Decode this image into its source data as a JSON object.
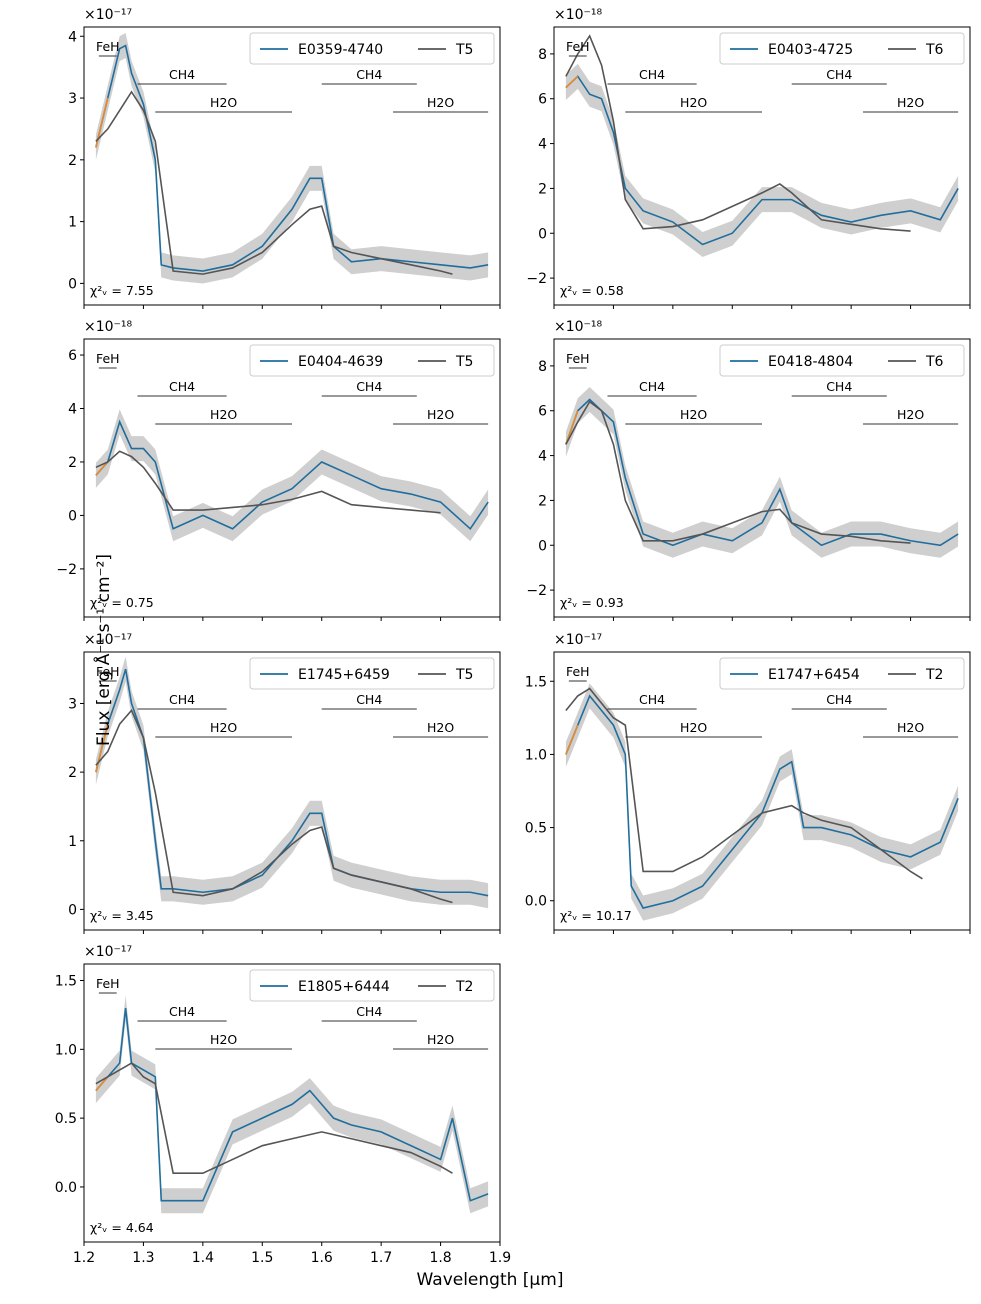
{
  "figure": {
    "ylabel": "Flux [erg Å⁻¹ s⁻¹ cm⁻²]",
    "xlabel": "Wavelength [μm]"
  },
  "colors": {
    "object": "#1f6e9e",
    "template": "#555555",
    "masked": "#e98a2a",
    "band": "#cfcfcf"
  },
  "chart_data": [
    {
      "type": "line",
      "panel": "row1-left",
      "object": "E0359-4740",
      "template": "T5",
      "exponent": "×10⁻¹⁷",
      "chi2": "7.55",
      "ylim": [
        -0.35,
        4.15
      ],
      "yticks": [
        0,
        1,
        2,
        3,
        4
      ],
      "series": [
        {
          "name": "E0359-4740",
          "x": [
            1.22,
            1.24,
            1.26,
            1.27,
            1.28,
            1.3,
            1.32,
            1.33,
            1.35,
            1.4,
            1.45,
            1.5,
            1.55,
            1.58,
            1.6,
            1.62,
            1.65,
            1.7,
            1.75,
            1.8,
            1.85,
            1.88
          ],
          "y": [
            2.2,
            3.0,
            3.8,
            3.85,
            3.4,
            2.9,
            2.0,
            0.3,
            0.25,
            0.2,
            0.3,
            0.6,
            1.2,
            1.7,
            1.7,
            0.6,
            0.35,
            0.4,
            0.35,
            0.3,
            0.25,
            0.3
          ]
        },
        {
          "name": "T5",
          "x": [
            1.22,
            1.24,
            1.26,
            1.28,
            1.3,
            1.32,
            1.35,
            1.4,
            1.45,
            1.5,
            1.55,
            1.58,
            1.6,
            1.62,
            1.65,
            1.7,
            1.75,
            1.8,
            1.82
          ],
          "y": [
            2.3,
            2.5,
            2.8,
            3.1,
            2.8,
            2.3,
            0.2,
            0.15,
            0.25,
            0.5,
            0.95,
            1.2,
            1.25,
            0.6,
            0.5,
            0.4,
            0.3,
            0.2,
            0.15
          ]
        }
      ]
    },
    {
      "type": "line",
      "panel": "row1-right",
      "object": "E0403-4725",
      "template": "T6",
      "exponent": "×10⁻¹⁸",
      "chi2": "0.58",
      "ylim": [
        -3.2,
        9.2
      ],
      "yticks": [
        -2,
        0,
        2,
        4,
        6,
        8
      ],
      "series": [
        {
          "name": "E0403-4725",
          "x": [
            1.22,
            1.24,
            1.26,
            1.28,
            1.3,
            1.32,
            1.35,
            1.4,
            1.45,
            1.5,
            1.55,
            1.6,
            1.65,
            1.7,
            1.75,
            1.8,
            1.85,
            1.88
          ],
          "y": [
            6.5,
            7.0,
            6.2,
            6.0,
            4.5,
            2.0,
            1.0,
            0.5,
            -0.5,
            0.0,
            1.5,
            1.5,
            0.8,
            0.5,
            0.8,
            1.0,
            0.6,
            2.0
          ]
        },
        {
          "name": "T6",
          "x": [
            1.22,
            1.24,
            1.26,
            1.28,
            1.3,
            1.32,
            1.35,
            1.4,
            1.45,
            1.5,
            1.55,
            1.58,
            1.6,
            1.65,
            1.7,
            1.75,
            1.8
          ],
          "y": [
            7.0,
            8.0,
            8.8,
            7.5,
            5.0,
            1.5,
            0.2,
            0.3,
            0.6,
            1.2,
            1.8,
            2.2,
            1.8,
            0.6,
            0.4,
            0.2,
            0.1
          ]
        }
      ]
    },
    {
      "type": "line",
      "panel": "row2-left",
      "object": "E0404-4639",
      "template": "T5",
      "exponent": "×10⁻¹⁸",
      "chi2": "0.75",
      "ylim": [
        -3.8,
        6.6
      ],
      "yticks": [
        -2,
        0,
        2,
        4,
        6
      ],
      "series": [
        {
          "name": "E0404-4639",
          "x": [
            1.22,
            1.24,
            1.26,
            1.28,
            1.3,
            1.32,
            1.35,
            1.4,
            1.45,
            1.5,
            1.55,
            1.6,
            1.65,
            1.7,
            1.75,
            1.8,
            1.85,
            1.88
          ],
          "y": [
            1.5,
            2.0,
            3.5,
            2.5,
            2.5,
            2.0,
            -0.5,
            0.0,
            -0.5,
            0.5,
            1.0,
            2.0,
            1.5,
            1.0,
            0.8,
            0.5,
            -0.5,
            0.5
          ]
        },
        {
          "name": "T5",
          "x": [
            1.22,
            1.24,
            1.26,
            1.28,
            1.3,
            1.32,
            1.35,
            1.4,
            1.45,
            1.5,
            1.55,
            1.6,
            1.65,
            1.7,
            1.75,
            1.8
          ],
          "y": [
            1.8,
            2.0,
            2.4,
            2.2,
            1.8,
            1.2,
            0.2,
            0.2,
            0.3,
            0.4,
            0.6,
            0.9,
            0.4,
            0.3,
            0.2,
            0.1
          ]
        }
      ]
    },
    {
      "type": "line",
      "panel": "row2-right",
      "object": "E0418-4804",
      "template": "T6",
      "exponent": "×10⁻¹⁸",
      "chi2": "0.93",
      "ylim": [
        -3.2,
        9.2
      ],
      "yticks": [
        -2,
        0,
        2,
        4,
        6,
        8
      ],
      "series": [
        {
          "name": "E0418-4804",
          "x": [
            1.22,
            1.24,
            1.26,
            1.28,
            1.3,
            1.32,
            1.35,
            1.4,
            1.45,
            1.5,
            1.55,
            1.58,
            1.6,
            1.65,
            1.7,
            1.75,
            1.8,
            1.85,
            1.88
          ],
          "y": [
            4.5,
            6.0,
            6.5,
            6.0,
            5.5,
            3.0,
            0.5,
            0.0,
            0.5,
            0.2,
            1.0,
            2.5,
            1.0,
            0.0,
            0.5,
            0.5,
            0.2,
            0.0,
            0.5
          ]
        },
        {
          "name": "T6",
          "x": [
            1.22,
            1.24,
            1.26,
            1.28,
            1.3,
            1.32,
            1.35,
            1.4,
            1.45,
            1.5,
            1.55,
            1.58,
            1.6,
            1.65,
            1.7,
            1.75,
            1.8
          ],
          "y": [
            4.5,
            5.5,
            6.4,
            6.0,
            4.5,
            2.0,
            0.2,
            0.2,
            0.5,
            1.0,
            1.5,
            1.6,
            1.0,
            0.5,
            0.4,
            0.2,
            0.1
          ]
        }
      ]
    },
    {
      "type": "line",
      "panel": "row3-left",
      "object": "E1745+6459",
      "template": "T5",
      "exponent": "×10⁻¹⁷",
      "chi2": "3.45",
      "ylim": [
        -0.3,
        3.75
      ],
      "yticks": [
        0,
        1,
        2,
        3
      ],
      "series": [
        {
          "name": "E1745+6459",
          "x": [
            1.22,
            1.24,
            1.26,
            1.27,
            1.28,
            1.3,
            1.32,
            1.33,
            1.35,
            1.4,
            1.45,
            1.5,
            1.55,
            1.58,
            1.6,
            1.62,
            1.65,
            1.7,
            1.75,
            1.8,
            1.85,
            1.88
          ],
          "y": [
            2.0,
            2.7,
            3.2,
            3.5,
            3.0,
            2.5,
            1.0,
            0.3,
            0.3,
            0.25,
            0.3,
            0.5,
            1.0,
            1.4,
            1.4,
            0.6,
            0.5,
            0.4,
            0.3,
            0.25,
            0.25,
            0.2
          ]
        },
        {
          "name": "T5",
          "x": [
            1.22,
            1.24,
            1.26,
            1.28,
            1.3,
            1.32,
            1.35,
            1.4,
            1.45,
            1.5,
            1.55,
            1.58,
            1.6,
            1.62,
            1.65,
            1.7,
            1.75,
            1.8,
            1.82
          ],
          "y": [
            2.1,
            2.3,
            2.7,
            2.9,
            2.5,
            1.7,
            0.25,
            0.2,
            0.3,
            0.55,
            0.95,
            1.15,
            1.2,
            0.6,
            0.5,
            0.4,
            0.3,
            0.15,
            0.1
          ]
        }
      ]
    },
    {
      "type": "line",
      "panel": "row3-right",
      "object": "E1747+6454",
      "template": "T2",
      "exponent": "×10⁻¹⁷",
      "chi2": "10.17",
      "ylim": [
        -0.2,
        1.7
      ],
      "yticks": [
        0.0,
        0.5,
        1.0,
        1.5
      ],
      "series": [
        {
          "name": "E1747+6454",
          "x": [
            1.22,
            1.24,
            1.26,
            1.28,
            1.3,
            1.32,
            1.33,
            1.35,
            1.4,
            1.45,
            1.5,
            1.55,
            1.58,
            1.6,
            1.62,
            1.65,
            1.7,
            1.75,
            1.8,
            1.85,
            1.88
          ],
          "y": [
            1.0,
            1.2,
            1.4,
            1.3,
            1.2,
            1.0,
            0.1,
            -0.05,
            0.0,
            0.1,
            0.35,
            0.6,
            0.9,
            0.95,
            0.5,
            0.5,
            0.45,
            0.35,
            0.3,
            0.4,
            0.7
          ]
        },
        {
          "name": "T2",
          "x": [
            1.22,
            1.24,
            1.26,
            1.28,
            1.3,
            1.32,
            1.35,
            1.4,
            1.45,
            1.5,
            1.55,
            1.6,
            1.62,
            1.65,
            1.7,
            1.75,
            1.8,
            1.82
          ],
          "y": [
            1.3,
            1.4,
            1.45,
            1.35,
            1.25,
            1.2,
            0.2,
            0.2,
            0.3,
            0.45,
            0.6,
            0.65,
            0.6,
            0.55,
            0.5,
            0.35,
            0.2,
            0.15
          ]
        }
      ]
    },
    {
      "type": "line",
      "panel": "row4-left",
      "object": "E1805+6444",
      "template": "T2",
      "exponent": "×10⁻¹⁷",
      "chi2": "4.64",
      "ylim": [
        -0.4,
        1.62
      ],
      "yticks": [
        0.0,
        0.5,
        1.0,
        1.5
      ],
      "series": [
        {
          "name": "E1805+6444",
          "x": [
            1.22,
            1.24,
            1.26,
            1.27,
            1.28,
            1.3,
            1.32,
            1.33,
            1.35,
            1.4,
            1.45,
            1.5,
            1.55,
            1.58,
            1.6,
            1.62,
            1.65,
            1.7,
            1.75,
            1.8,
            1.82,
            1.85,
            1.88
          ],
          "y": [
            0.7,
            0.8,
            0.9,
            1.3,
            0.9,
            0.85,
            0.8,
            -0.1,
            -0.1,
            -0.1,
            0.4,
            0.5,
            0.6,
            0.7,
            0.6,
            0.5,
            0.45,
            0.4,
            0.3,
            0.2,
            0.5,
            -0.1,
            -0.05
          ]
        },
        {
          "name": "T2",
          "x": [
            1.22,
            1.24,
            1.26,
            1.28,
            1.3,
            1.32,
            1.35,
            1.4,
            1.45,
            1.5,
            1.55,
            1.6,
            1.62,
            1.65,
            1.7,
            1.75,
            1.8,
            1.82
          ],
          "y": [
            0.75,
            0.8,
            0.85,
            0.9,
            0.8,
            0.75,
            0.1,
            0.1,
            0.2,
            0.3,
            0.35,
            0.4,
            0.38,
            0.35,
            0.3,
            0.25,
            0.15,
            0.1
          ]
        }
      ]
    }
  ],
  "shared": {
    "xlim": [
      1.2,
      1.9
    ],
    "xticks": [
      "1.2",
      "1.3",
      "1.4",
      "1.5",
      "1.6",
      "1.7",
      "1.8",
      "1.9"
    ],
    "bands": [
      {
        "label": "FeH",
        "x0": 1.225,
        "x1": 1.255,
        "level": 0
      },
      {
        "label": "CH4",
        "x0": 1.29,
        "x1": 1.44,
        "level": 1
      },
      {
        "label": "CH4",
        "x0": 1.6,
        "x1": 1.76,
        "level": 1
      },
      {
        "label": "H2O",
        "x0": 1.32,
        "x1": 1.55,
        "level": 2
      },
      {
        "label": "H2O",
        "x0": 1.72,
        "x1": 1.88,
        "level": 2
      }
    ],
    "chi_prefix": "χ²ᵥ = "
  }
}
